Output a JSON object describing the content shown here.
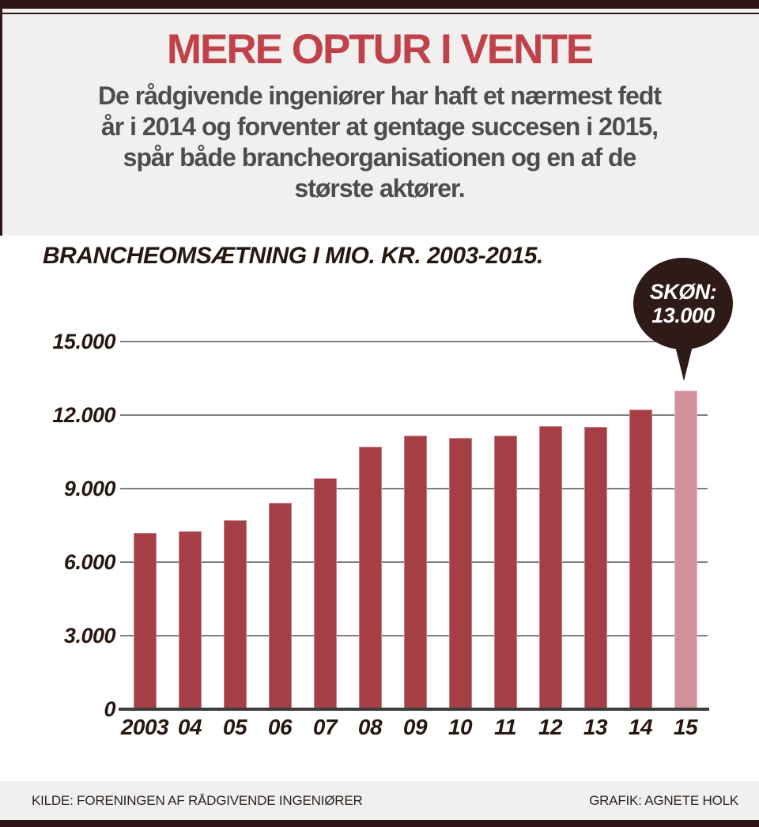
{
  "page": {
    "title": "MERE OPTUR I VENTE",
    "subtitle": "De rådgivende ingeniører har haft et nærmest fedt\når i 2014 og forventer at gentage succesen i 2015,\nspår både brancheorganisationen og en af de\nstørste aktører."
  },
  "footer": {
    "source": "KILDE: FORENINGEN AF RÅDGIVENDE INGENIØRER",
    "credit": "GRAFIK: AGNETE HOLK"
  },
  "colors": {
    "background": "#f1f0ef",
    "panel": "#ffffff",
    "frame_dark": "#2d151a",
    "title_red": "#c04149",
    "subtitle_gray": "#4d4d4d",
    "axis_text": "#261711",
    "bar": "#a63e46",
    "bar_estimate": "#d29099",
    "callout_bg": "#2e1a16",
    "callout_text": "#ffffff",
    "gridline": "#7d7d7d",
    "baseline": "#3d3d3d",
    "footer_text": "#2a2522"
  },
  "chart_data": {
    "type": "bar",
    "title": "BRANCHEOMSÆTNING I MIO. KR. 2003-2015.",
    "categories": [
      "2003",
      "04",
      "05",
      "06",
      "07",
      "08",
      "09",
      "10",
      "11",
      "12",
      "13",
      "14",
      "15"
    ],
    "values": [
      7200,
      7250,
      7700,
      8400,
      9400,
      10700,
      11150,
      11050,
      11150,
      11550,
      11500,
      12200,
      13000
    ],
    "estimate_index": 12,
    "callout": {
      "line1": "SKØN:",
      "line2": "13.000"
    },
    "y_ticks": [
      {
        "value": 15000,
        "label": "15.000"
      },
      {
        "value": 12000,
        "label": "12.000"
      },
      {
        "value": 9000,
        "label": "9.000"
      },
      {
        "value": 6000,
        "label": "6.000"
      },
      {
        "value": 3000,
        "label": "3.000"
      },
      {
        "value": 0,
        "label": "0"
      }
    ],
    "ylim": [
      0,
      15000
    ],
    "grid": true,
    "legend": "none",
    "xlabel": "",
    "ylabel": ""
  }
}
